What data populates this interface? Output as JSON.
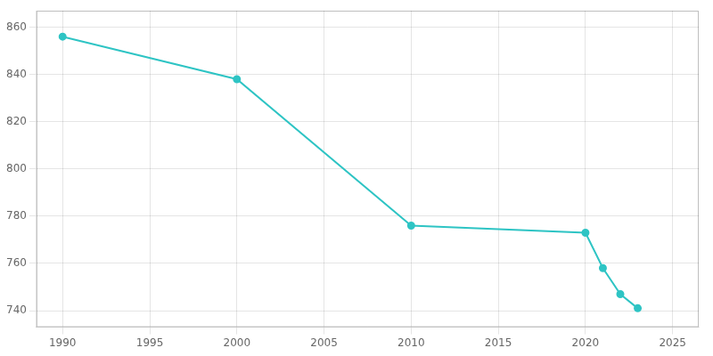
{
  "chart_data": {
    "type": "line",
    "x": [
      1990,
      2000,
      2010,
      2020,
      2021,
      2022,
      2023
    ],
    "values": [
      856,
      838,
      776,
      773,
      758,
      747,
      741
    ],
    "color": "#2EC4C4",
    "marker": "circle",
    "xlim": [
      1988.5,
      2026.5
    ],
    "ylim": [
      733,
      867
    ],
    "xticks": [
      1990,
      1995,
      2000,
      2005,
      2010,
      2015,
      2020,
      2025
    ],
    "yticks": [
      740,
      760,
      780,
      800,
      820,
      840,
      860
    ],
    "grid": true
  }
}
